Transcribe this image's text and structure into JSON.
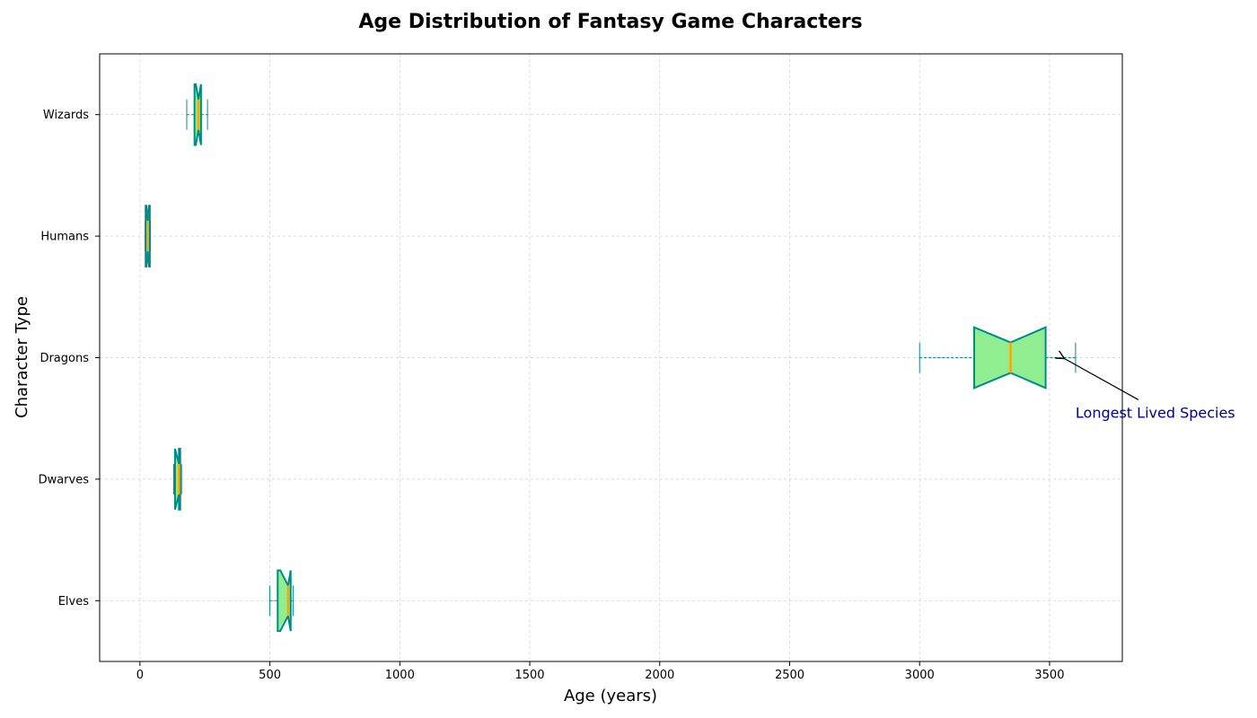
{
  "chart_data": {
    "type": "boxplot",
    "orientation": "horizontal",
    "notched": true,
    "title": "Age Distribution of Fantasy Game Characters",
    "xlabel": "Age (years)",
    "ylabel": "Character Type",
    "xlim": [
      -155,
      3780
    ],
    "xticks": [
      0,
      500,
      1000,
      1500,
      2000,
      2500,
      3000,
      3500
    ],
    "grid": true,
    "categories": [
      "Elves",
      "Dwarves",
      "Dragons",
      "Humans",
      "Wizards"
    ],
    "boxes": [
      {
        "category": "Elves",
        "whisker_low": 500,
        "q1": 530,
        "median": 570,
        "q3": 580,
        "whisker_high": 590,
        "notch_low": 540,
        "notch_high": 580
      },
      {
        "category": "Dwarves",
        "whisker_low": 130,
        "q1": 135,
        "median": 150,
        "q3": 155,
        "whisker_high": 160,
        "notch_low": 135,
        "notch_high": 150
      },
      {
        "category": "Dragons",
        "whisker_low": 3000,
        "q1": 3210,
        "median": 3350,
        "q3": 3485,
        "whisker_high": 3600,
        "notch_low": 3210,
        "notch_high": 3485
      },
      {
        "category": "Humans",
        "whisker_low": 20,
        "q1": 22,
        "median": 30,
        "q3": 38,
        "whisker_high": 40,
        "notch_low": 25,
        "notch_high": 35
      },
      {
        "category": "Wizards",
        "whisker_low": 180,
        "q1": 210,
        "median": 225,
        "q3": 235,
        "whisker_high": 260,
        "notch_low": 215,
        "notch_high": 235
      }
    ],
    "colors": {
      "box_fill": "#90EE90",
      "box_edge": "#008B8B",
      "median": "#FFA500",
      "whisker": "#008B8B",
      "grid": "#cccccc",
      "annotation": "#00008B"
    },
    "annotation": {
      "text": "Longest Lived Species",
      "target": {
        "x": 3550,
        "category": "Dragons"
      },
      "text_anchor": {
        "x": 3600,
        "category_offset": -0.45
      }
    }
  }
}
